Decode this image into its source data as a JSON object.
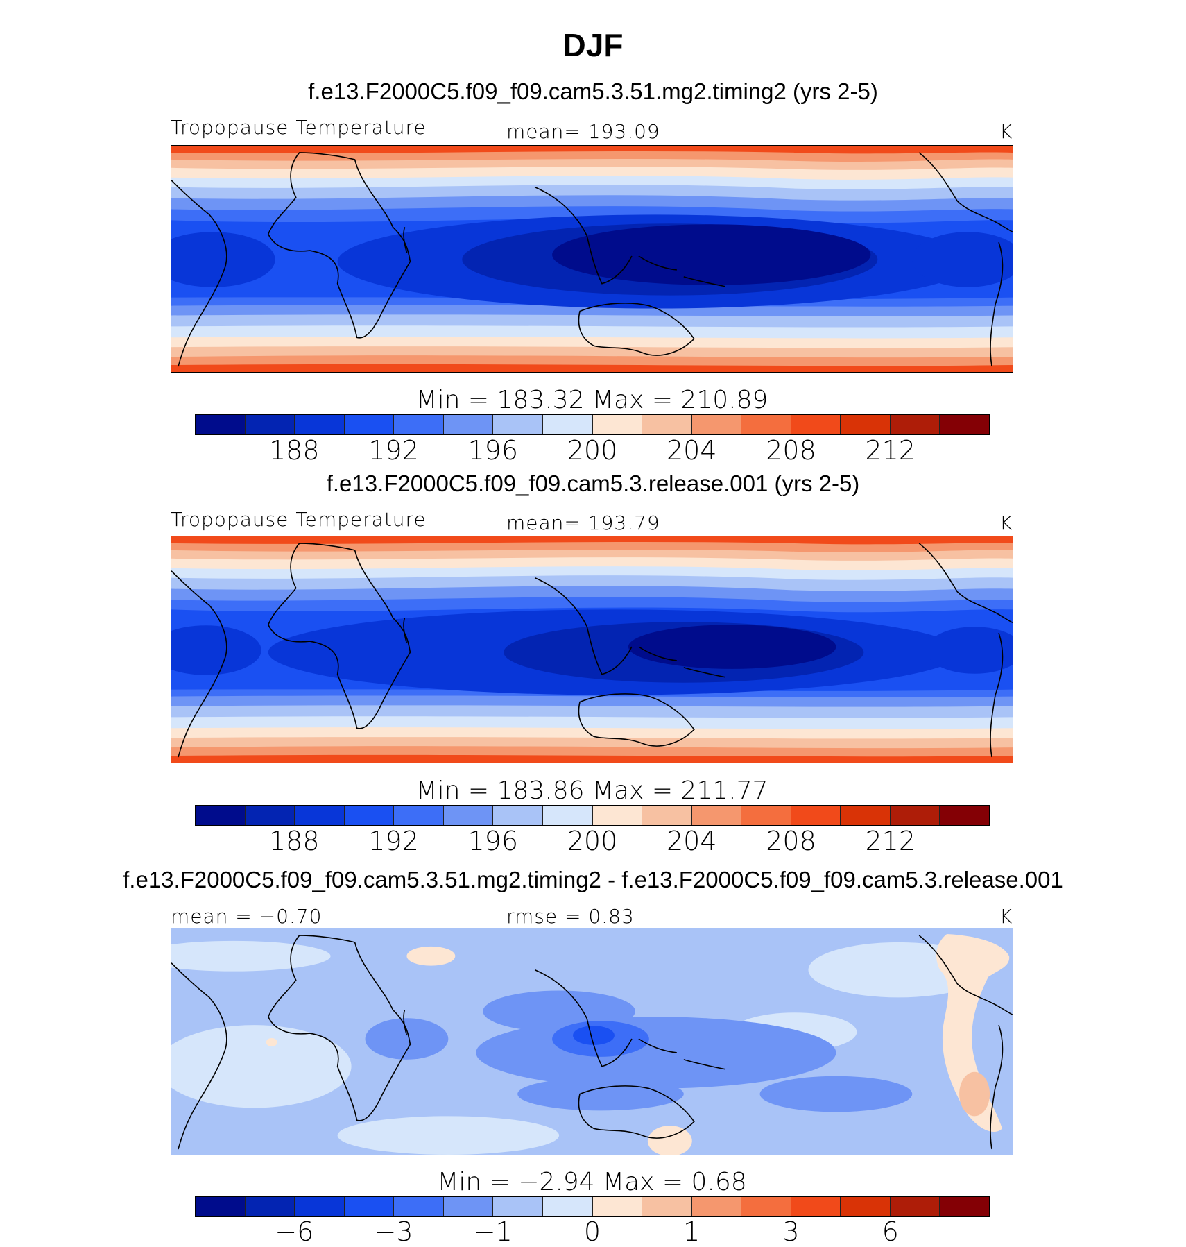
{
  "figure": {
    "title": "DJF"
  },
  "panels": [
    {
      "case_title": "f.e13.F2000C5.f09_f09.cam5.3.51.mg2.timing2 (yrs 2-5)",
      "left_label": "Tropopause Temperature",
      "center_label": "mean=  193.09",
      "right_label": "K",
      "minmax_label": "Min  =  183.32  Max  =  210.89",
      "colorbar_ticks": [
        "188",
        "192",
        "196",
        "200",
        "204",
        "208",
        "212"
      ]
    },
    {
      "case_title": "f.e13.F2000C5.f09_f09.cam5.3.release.001 (yrs 2-5)",
      "left_label": "Tropopause Temperature",
      "center_label": "mean=  193.79",
      "right_label": "K",
      "minmax_label": "Min  =  183.86  Max  =  211.77",
      "colorbar_ticks": [
        "188",
        "192",
        "196",
        "200",
        "204",
        "208",
        "212"
      ]
    },
    {
      "case_title": "f.e13.F2000C5.f09_f09.cam5.3.51.mg2.timing2 - f.e13.F2000C5.f09_f09.cam5.3.release.001",
      "left_label": "mean =   −0.70",
      "center_label": "rmse =     0.83",
      "right_label": "K",
      "minmax_label": "Min  =    −2.94  Max  =     0.68",
      "colorbar_ticks": [
        "−6",
        "−3",
        "−1",
        "0",
        "1",
        "3",
        "6"
      ]
    }
  ],
  "colorbar_colors": [
    "#000c8c",
    "#0324b2",
    "#0836d8",
    "#1a50f2",
    "#3d6ef7",
    "#6e94f5",
    "#a9c3f7",
    "#d6e6fb",
    "#fde6d3",
    "#f7c1a2",
    "#f5976e",
    "#f46e3e",
    "#f14a1a",
    "#d93306",
    "#ae1d08",
    "#840005"
  ]
}
